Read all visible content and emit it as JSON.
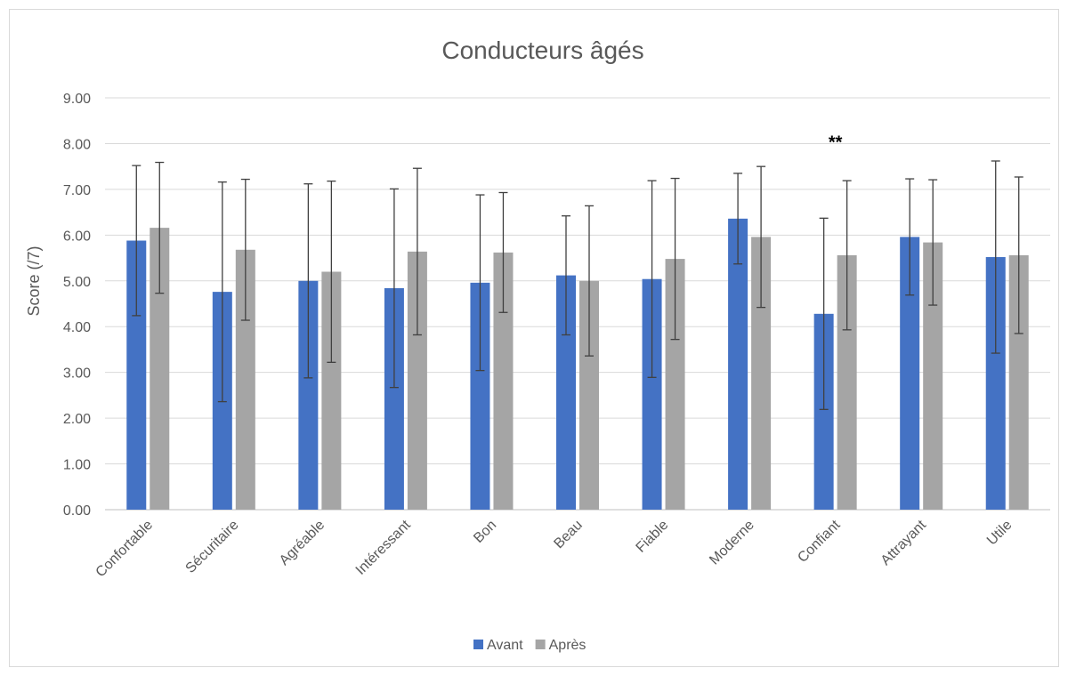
{
  "chart_data": {
    "type": "bar",
    "title": "Conducteurs âgés",
    "xlabel": "",
    "ylabel": "Score (/7)",
    "ylim": [
      0,
      9
    ],
    "ytick_step": 1,
    "ytick_format": "0.00",
    "grid": true,
    "legend_position": "bottom",
    "categories": [
      "Confortable",
      "Sécuritaire",
      "Agréable",
      "Intéressant",
      "Bon",
      "Beau",
      "Fiable",
      "Moderne",
      "Confiant",
      "Attrayant",
      "Utile"
    ],
    "series": [
      {
        "name": "Avant",
        "color": "#4472c4",
        "values": [
          5.88,
          4.76,
          5.0,
          4.84,
          4.96,
          5.12,
          5.04,
          6.36,
          4.28,
          5.96,
          5.52
        ],
        "error": [
          1.64,
          2.4,
          2.12,
          2.17,
          1.92,
          1.3,
          2.15,
          0.99,
          2.09,
          1.27,
          2.1
        ]
      },
      {
        "name": "Après",
        "color": "#a5a5a5",
        "values": [
          6.16,
          5.68,
          5.2,
          5.64,
          5.62,
          5.0,
          5.48,
          5.96,
          5.56,
          5.84,
          5.56
        ],
        "error": [
          1.43,
          1.54,
          1.98,
          1.82,
          1.31,
          1.64,
          1.76,
          1.54,
          1.63,
          1.37,
          1.71
        ]
      }
    ],
    "annotations": [
      {
        "text": "**",
        "category": "Confiant",
        "value": 8.1
      }
    ]
  }
}
